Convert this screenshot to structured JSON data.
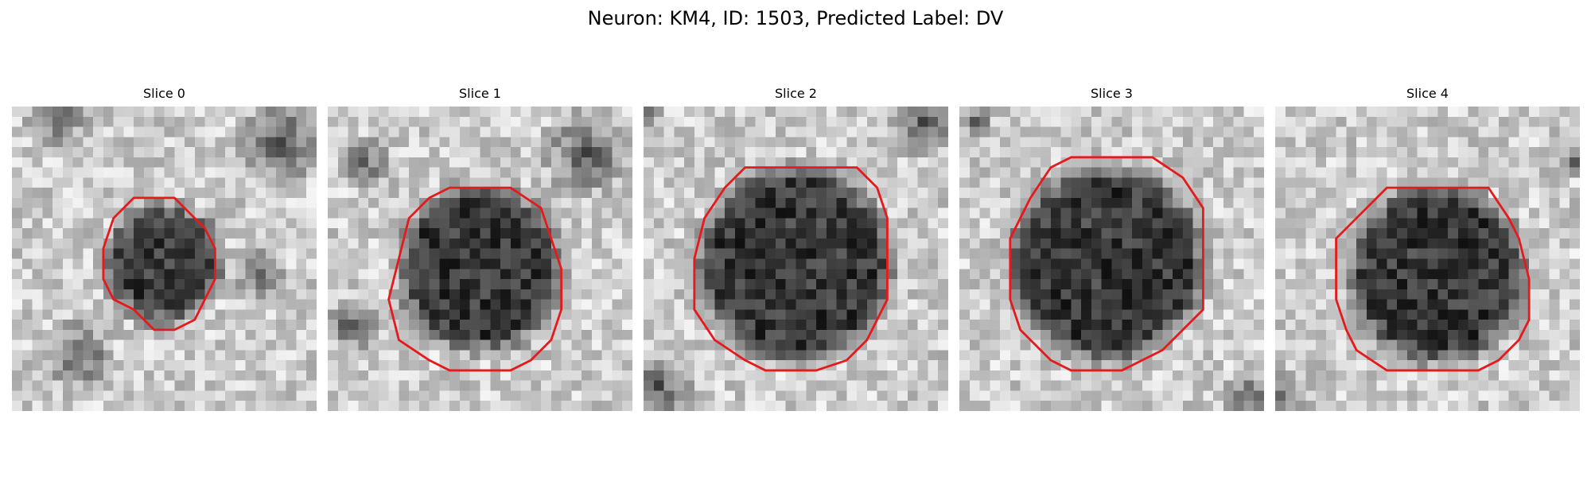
{
  "figure": {
    "title": "Neuron: KM4, ID: 1503, Predicted Label: DV"
  },
  "slices": [
    {
      "label": "Slice 0",
      "outline": [
        [
          16,
          9
        ],
        [
          19,
          12
        ],
        [
          20,
          14
        ],
        [
          20,
          17
        ],
        [
          19,
          19
        ],
        [
          18,
          21
        ],
        [
          16,
          22
        ],
        [
          14,
          22
        ],
        [
          12,
          20
        ],
        [
          10,
          19
        ],
        [
          9,
          17
        ],
        [
          9,
          14
        ],
        [
          10,
          11
        ],
        [
          12,
          9
        ]
      ]
    },
    {
      "label": "Slice 1",
      "outline": [
        [
          18,
          8
        ],
        [
          21,
          10
        ],
        [
          22,
          13
        ],
        [
          23,
          16
        ],
        [
          23,
          20
        ],
        [
          22,
          23
        ],
        [
          20,
          25
        ],
        [
          18,
          26
        ],
        [
          12,
          26
        ],
        [
          10,
          25
        ],
        [
          7,
          23
        ],
        [
          6,
          19
        ],
        [
          7,
          15
        ],
        [
          8,
          11
        ],
        [
          10,
          9
        ],
        [
          12,
          8
        ]
      ]
    },
    {
      "label": "Slice 2",
      "outline": [
        [
          21,
          6
        ],
        [
          23,
          8
        ],
        [
          24,
          11
        ],
        [
          24,
          16
        ],
        [
          24,
          19
        ],
        [
          22,
          23
        ],
        [
          20,
          25
        ],
        [
          17,
          26
        ],
        [
          12,
          26
        ],
        [
          10,
          25
        ],
        [
          7,
          23
        ],
        [
          5,
          20
        ],
        [
          5,
          15
        ],
        [
          6,
          11
        ],
        [
          8,
          8
        ],
        [
          10,
          6
        ]
      ]
    },
    {
      "label": "Slice 3",
      "outline": [
        [
          19,
          5
        ],
        [
          22,
          7
        ],
        [
          24,
          10
        ],
        [
          24,
          13
        ],
        [
          24,
          20
        ],
        [
          22,
          22
        ],
        [
          20,
          24
        ],
        [
          18,
          25
        ],
        [
          16,
          26
        ],
        [
          11,
          26
        ],
        [
          9,
          25
        ],
        [
          6,
          22
        ],
        [
          5,
          19
        ],
        [
          5,
          13
        ],
        [
          7,
          9
        ],
        [
          9,
          6
        ],
        [
          11,
          5
        ]
      ]
    },
    {
      "label": "Slice 4",
      "outline": [
        [
          21,
          8
        ],
        [
          23,
          11
        ],
        [
          24,
          13
        ],
        [
          25,
          17
        ],
        [
          25,
          21
        ],
        [
          24,
          23
        ],
        [
          22,
          25
        ],
        [
          20,
          26
        ],
        [
          11,
          26
        ],
        [
          8,
          24
        ],
        [
          7,
          22
        ],
        [
          6,
          19
        ],
        [
          6,
          13
        ],
        [
          8,
          11
        ],
        [
          10,
          9
        ],
        [
          11,
          8
        ]
      ]
    }
  ],
  "colors": {
    "outline": "#e41a1c"
  }
}
